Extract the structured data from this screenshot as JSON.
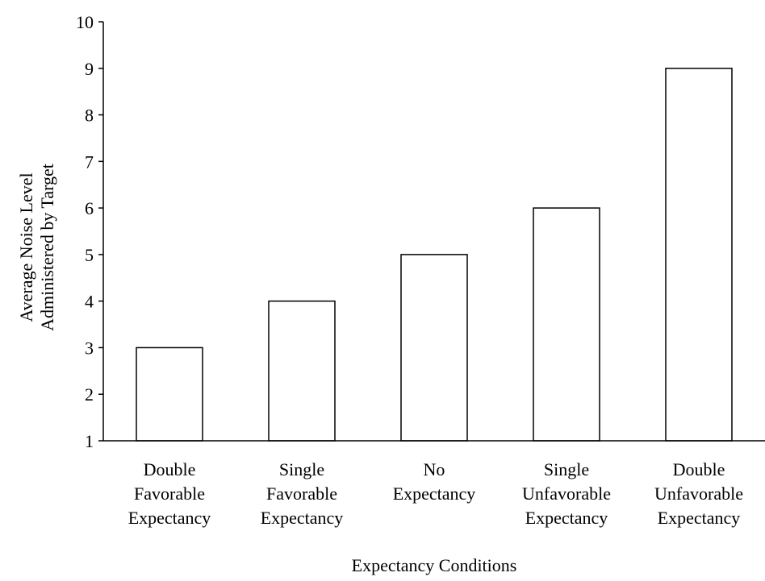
{
  "chart_data": {
    "type": "bar",
    "title": "",
    "xlabel": "Expectancy Conditions",
    "ylabel": [
      "Average Noise Level",
      "Administered by Target"
    ],
    "ylim": [
      1,
      10
    ],
    "yticks": [
      "1",
      "2",
      "3",
      "4",
      "5",
      "6",
      "7",
      "8",
      "9",
      "10"
    ],
    "categories": [
      [
        "Double",
        "Favorable",
        "Expectancy"
      ],
      [
        "Single",
        "Favorable",
        "Expectancy"
      ],
      [
        "No",
        "Expectancy"
      ],
      [
        "Single",
        "Unfavorable",
        "Expectancy"
      ],
      [
        "Double",
        "Unfavorable",
        "Expectancy"
      ]
    ],
    "values": [
      3,
      4,
      5,
      6,
      9
    ],
    "bar_fill": "#ffffff",
    "bar_stroke": "#000000",
    "grid": false,
    "legend": "none"
  }
}
